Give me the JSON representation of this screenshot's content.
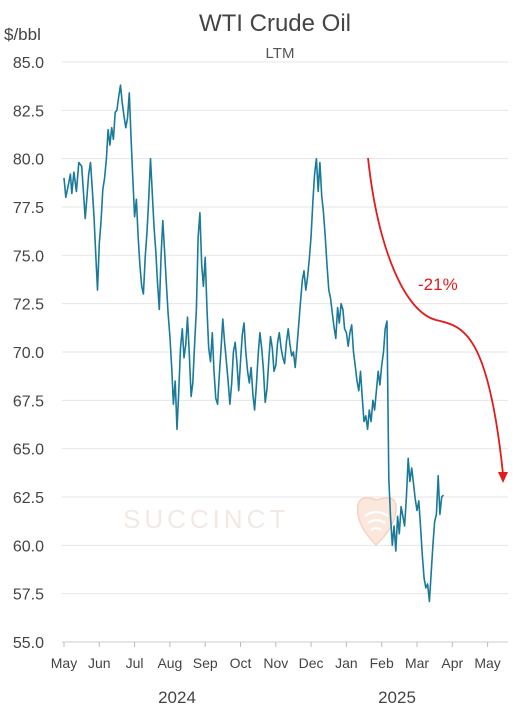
{
  "chart_data": {
    "type": "line",
    "title": "WTI Crude Oil",
    "subtitle": "LTM",
    "ylabel": "$/bbl",
    "ylim": [
      55,
      85
    ],
    "yticks": [
      "85.0",
      "82.5",
      "80.0",
      "77.5",
      "75.0",
      "72.5",
      "70.0",
      "67.5",
      "65.0",
      "62.5",
      "60.0",
      "57.5",
      "55.0"
    ],
    "xtick_labels": [
      "May",
      "Jun",
      "Jul",
      "Aug",
      "Sep",
      "Oct",
      "Nov",
      "Dec",
      "Jan",
      "Feb",
      "Mar",
      "Apr",
      "May"
    ],
    "year_labels": [
      "2024",
      "2025"
    ],
    "grid": true,
    "annotation": "-21%",
    "watermark": "SUCCINCT",
    "colors": {
      "series": "#1a7a99",
      "annotation": "#e31b1b"
    },
    "series": [
      {
        "values": [
          [
            0.0,
            79.0
          ],
          [
            0.05,
            78.0
          ],
          [
            0.12,
            78.6
          ],
          [
            0.18,
            79.2
          ],
          [
            0.22,
            78.2
          ],
          [
            0.28,
            79.3
          ],
          [
            0.35,
            78.3
          ],
          [
            0.42,
            79.8
          ],
          [
            0.5,
            79.6
          ],
          [
            0.55,
            78.3
          ],
          [
            0.6,
            76.9
          ],
          [
            0.65,
            78.0
          ],
          [
            0.7,
            79.2
          ],
          [
            0.75,
            79.8
          ],
          [
            0.8,
            78.5
          ],
          [
            0.85,
            77.0
          ],
          [
            0.9,
            75.0
          ],
          [
            0.95,
            73.2
          ],
          [
            1.0,
            75.6
          ],
          [
            1.05,
            76.8
          ],
          [
            1.1,
            78.4
          ],
          [
            1.15,
            79.0
          ],
          [
            1.2,
            80.0
          ],
          [
            1.25,
            81.5
          ],
          [
            1.3,
            80.7
          ],
          [
            1.35,
            81.6
          ],
          [
            1.4,
            81.0
          ],
          [
            1.45,
            82.4
          ],
          [
            1.5,
            82.5
          ],
          [
            1.55,
            83.2
          ],
          [
            1.6,
            83.8
          ],
          [
            1.65,
            82.9
          ],
          [
            1.7,
            82.2
          ],
          [
            1.75,
            81.6
          ],
          [
            1.8,
            82.1
          ],
          [
            1.85,
            83.4
          ],
          [
            1.9,
            81.0
          ],
          [
            1.95,
            79.0
          ],
          [
            2.0,
            77.0
          ],
          [
            2.05,
            77.9
          ],
          [
            2.1,
            76.0
          ],
          [
            2.15,
            74.5
          ],
          [
            2.2,
            73.4
          ],
          [
            2.25,
            73.0
          ],
          [
            2.3,
            74.9
          ],
          [
            2.35,
            76.2
          ],
          [
            2.4,
            77.9
          ],
          [
            2.45,
            80.0
          ],
          [
            2.5,
            78.2
          ],
          [
            2.55,
            76.5
          ],
          [
            2.6,
            75.2
          ],
          [
            2.65,
            73.6
          ],
          [
            2.7,
            72.2
          ],
          [
            2.75,
            75.0
          ],
          [
            2.8,
            76.8
          ],
          [
            2.85,
            75.2
          ],
          [
            2.9,
            73.5
          ],
          [
            2.95,
            72.0
          ],
          [
            3.0,
            70.8
          ],
          [
            3.05,
            69.2
          ],
          [
            3.1,
            67.3
          ],
          [
            3.15,
            68.5
          ],
          [
            3.2,
            66.0
          ],
          [
            3.25,
            67.9
          ],
          [
            3.3,
            70.2
          ],
          [
            3.35,
            71.2
          ],
          [
            3.4,
            69.7
          ],
          [
            3.45,
            70.4
          ],
          [
            3.5,
            71.8
          ],
          [
            3.55,
            69.9
          ],
          [
            3.6,
            67.7
          ],
          [
            3.65,
            68.4
          ],
          [
            3.7,
            70.4
          ],
          [
            3.75,
            72.2
          ],
          [
            3.8,
            75.9
          ],
          [
            3.85,
            77.2
          ],
          [
            3.9,
            74.5
          ],
          [
            3.95,
            73.4
          ],
          [
            4.0,
            74.9
          ],
          [
            4.05,
            72.2
          ],
          [
            4.1,
            70.2
          ],
          [
            4.15,
            69.5
          ],
          [
            4.2,
            71.0
          ],
          [
            4.25,
            69.0
          ],
          [
            4.3,
            67.6
          ],
          [
            4.35,
            67.3
          ],
          [
            4.4,
            68.8
          ],
          [
            4.45,
            70.2
          ],
          [
            4.5,
            71.7
          ],
          [
            4.55,
            70.5
          ],
          [
            4.6,
            69.5
          ],
          [
            4.65,
            68.5
          ],
          [
            4.7,
            67.3
          ],
          [
            4.75,
            68.4
          ],
          [
            4.8,
            70.0
          ],
          [
            4.85,
            70.5
          ],
          [
            4.9,
            69.4
          ],
          [
            4.95,
            68.0
          ],
          [
            5.0,
            69.5
          ],
          [
            5.05,
            70.9
          ],
          [
            5.1,
            71.5
          ],
          [
            5.15,
            70.0
          ],
          [
            5.2,
            69.0
          ],
          [
            5.25,
            68.4
          ],
          [
            5.3,
            69.2
          ],
          [
            5.35,
            67.8
          ],
          [
            5.4,
            67.0
          ],
          [
            5.45,
            68.3
          ],
          [
            5.5,
            69.8
          ],
          [
            5.55,
            71.0
          ],
          [
            5.6,
            70.2
          ],
          [
            5.65,
            69.1
          ],
          [
            5.7,
            67.4
          ],
          [
            5.75,
            68.1
          ],
          [
            5.8,
            69.5
          ],
          [
            5.85,
            70.8
          ],
          [
            5.9,
            70.2
          ],
          [
            5.95,
            69.0
          ],
          [
            6.0,
            69.3
          ],
          [
            6.05,
            70.5
          ],
          [
            6.1,
            71.0
          ],
          [
            6.15,
            70.2
          ],
          [
            6.2,
            69.7
          ],
          [
            6.25,
            69.4
          ],
          [
            6.3,
            70.5
          ],
          [
            6.35,
            71.2
          ],
          [
            6.4,
            70.4
          ],
          [
            6.45,
            69.8
          ],
          [
            6.5,
            70.0
          ],
          [
            6.55,
            69.2
          ],
          [
            6.6,
            70.3
          ],
          [
            6.65,
            71.4
          ],
          [
            6.7,
            72.6
          ],
          [
            6.75,
            73.7
          ],
          [
            6.8,
            74.2
          ],
          [
            6.85,
            73.2
          ],
          [
            6.9,
            73.9
          ],
          [
            6.95,
            74.8
          ],
          [
            7.0,
            76.0
          ],
          [
            7.05,
            77.8
          ],
          [
            7.1,
            79.2
          ],
          [
            7.15,
            80.0
          ],
          [
            7.2,
            78.3
          ],
          [
            7.25,
            79.8
          ],
          [
            7.3,
            78.1
          ],
          [
            7.35,
            77.2
          ],
          [
            7.4,
            76.0
          ],
          [
            7.45,
            74.5
          ],
          [
            7.5,
            73.2
          ],
          [
            7.55,
            72.8
          ],
          [
            7.6,
            72.0
          ],
          [
            7.65,
            71.3
          ],
          [
            7.7,
            70.7
          ],
          [
            7.75,
            72.3
          ],
          [
            7.8,
            71.5
          ],
          [
            7.85,
            72.5
          ],
          [
            7.9,
            72.2
          ],
          [
            7.95,
            71.2
          ],
          [
            8.0,
            71.0
          ],
          [
            8.05,
            70.3
          ],
          [
            8.1,
            71.0
          ],
          [
            8.15,
            71.4
          ],
          [
            8.2,
            70.0
          ],
          [
            8.25,
            69.3
          ],
          [
            8.3,
            68.5
          ],
          [
            8.35,
            68.0
          ],
          [
            8.4,
            69.0
          ],
          [
            8.45,
            67.6
          ],
          [
            8.5,
            66.4
          ],
          [
            8.55,
            66.7
          ],
          [
            8.6,
            66.0
          ],
          [
            8.65,
            67.0
          ],
          [
            8.7,
            66.4
          ],
          [
            8.75,
            67.5
          ],
          [
            8.8,
            67.0
          ],
          [
            8.85,
            68.0
          ],
          [
            8.9,
            69.0
          ],
          [
            8.95,
            68.3
          ],
          [
            9.0,
            69.3
          ],
          [
            9.05,
            70.0
          ],
          [
            9.1,
            71.2
          ],
          [
            9.15,
            71.6
          ],
          [
            9.2,
            63.5
          ],
          [
            9.25,
            61.5
          ],
          [
            9.3,
            60.0
          ],
          [
            9.35,
            61.0
          ],
          [
            9.4,
            59.7
          ],
          [
            9.45,
            61.5
          ],
          [
            9.5,
            60.6
          ],
          [
            9.55,
            62.0
          ],
          [
            9.6,
            61.5
          ],
          [
            9.65,
            61.0
          ],
          [
            9.7,
            62.5
          ],
          [
            9.75,
            64.5
          ],
          [
            9.8,
            63.3
          ],
          [
            9.85,
            64.0
          ],
          [
            9.9,
            63.2
          ],
          [
            9.95,
            62.4
          ],
          [
            10.0,
            61.8
          ],
          [
            10.05,
            62.3
          ],
          [
            10.1,
            61.0
          ],
          [
            10.15,
            59.5
          ],
          [
            10.2,
            58.3
          ],
          [
            10.25,
            57.8
          ],
          [
            10.3,
            58.0
          ],
          [
            10.35,
            57.1
          ],
          [
            10.4,
            58.5
          ],
          [
            10.45,
            60.0
          ],
          [
            10.5,
            61.2
          ],
          [
            10.55,
            61.6
          ],
          [
            10.6,
            63.6
          ],
          [
            10.65,
            61.6
          ],
          [
            10.7,
            62.5
          ],
          [
            10.75,
            62.6
          ]
        ]
      }
    ]
  }
}
